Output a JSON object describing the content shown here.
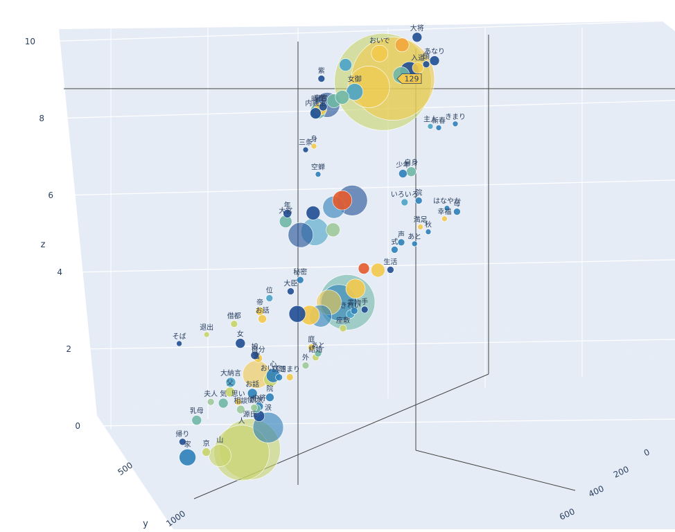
{
  "chart_data": {
    "type": "scatter",
    "subtype": "scatter3d-bubble",
    "grid": true,
    "axes": {
      "x": {
        "title": "x",
        "ticks": [
          "0",
          "200",
          "400",
          "600"
        ]
      },
      "y": {
        "title": "y",
        "ticks": [
          "500",
          "1000"
        ]
      },
      "z": {
        "title": "z",
        "ticks": [
          "0",
          "2",
          "4",
          "6",
          "8",
          "10"
        ],
        "range": [
          0,
          10
        ]
      }
    },
    "hover": {
      "value": "129"
    },
    "colors": [
      "#1f4e94",
      "#2c7fb8",
      "#4aa3c7",
      "#6fb7a6",
      "#9ec99a",
      "#c8d46a",
      "#f2c94c",
      "#f3a63b",
      "#e45b2c",
      "#c62d2d"
    ],
    "points": [
      {
        "label": "そば",
        "x": 1200,
        "y": 120,
        "z": 3.3,
        "s": 4,
        "c": 0
      },
      {
        "label": "退出",
        "x": 1100,
        "y": 140,
        "z": 3.35,
        "s": 4,
        "c": 5
      },
      {
        "label": "借都",
        "x": 1000,
        "y": 160,
        "z": 3.45,
        "s": 5,
        "c": 5
      },
      {
        "label": "帝",
        "x": 900,
        "y": 200,
        "z": 3.6,
        "s": 6,
        "c": 6
      },
      {
        "label": "お話",
        "x": 880,
        "y": 240,
        "z": 3.3,
        "s": 6,
        "c": 6
      },
      {
        "label": "大臣",
        "x": 800,
        "y": 180,
        "z": 4.0,
        "s": 5,
        "c": 0
      },
      {
        "label": "秘密",
        "x": 750,
        "y": 240,
        "z": 4.2,
        "s": 5,
        "c": 1
      },
      {
        "label": "位",
        "x": 850,
        "y": 260,
        "z": 3.85,
        "s": 5,
        "c": 2
      },
      {
        "label": "女",
        "x": 950,
        "y": 260,
        "z": 2.7,
        "s": 7,
        "c": 0
      },
      {
        "label": "満足",
        "x": 200,
        "y": 720,
        "z": 4.35,
        "s": 4,
        "c": 6
      },
      {
        "label": "幸福",
        "x": 100,
        "y": 780,
        "z": 4.35,
        "s": 4,
        "c": 6
      },
      {
        "label": "はなやか",
        "x": 80,
        "y": 820,
        "z": 4.6,
        "s": 4,
        "c": 1
      },
      {
        "label": "母",
        "x": 40,
        "y": 840,
        "z": 4.4,
        "s": 5,
        "c": 1
      },
      {
        "label": "秋",
        "x": 150,
        "y": 800,
        "z": 4.05,
        "s": 4,
        "c": 1
      },
      {
        "label": "あと",
        "x": 200,
        "y": 790,
        "z": 3.8,
        "s": 4,
        "c": 1
      },
      {
        "label": "声",
        "x": 260,
        "y": 740,
        "z": 4.0,
        "s": 5,
        "c": 1
      },
      {
        "label": "式",
        "x": 300,
        "y": 680,
        "z": 3.9,
        "s": 5,
        "c": 1
      },
      {
        "label": "生活",
        "x": 320,
        "y": 660,
        "z": 3.35,
        "s": 5,
        "c": 0
      },
      {
        "label": "手",
        "x": 400,
        "y": 690,
        "z": 2.3,
        "s": 5,
        "c": 0
      },
      {
        "label": "書物",
        "x": 450,
        "y": 640,
        "z": 2.4,
        "s": 5,
        "c": 1
      },
      {
        "label": "座敷",
        "x": 500,
        "y": 600,
        "z": 2.0,
        "s": 5,
        "c": 5
      },
      {
        "label": "きれい",
        "x": 480,
        "y": 580,
        "z": 2.4,
        "s": 6,
        "c": 2
      },
      {
        "label": "結婚",
        "x": 600,
        "y": 580,
        "z": 1.35,
        "s": 5,
        "c": 5
      },
      {
        "label": "あと",
        "x": 580,
        "y": 620,
        "z": 1.4,
        "s": 5,
        "c": 3
      },
      {
        "label": "庭",
        "x": 620,
        "y": 560,
        "z": 1.7,
        "s": 5,
        "c": 6
      },
      {
        "label": "外",
        "x": 640,
        "y": 560,
        "z": 1.2,
        "s": 5,
        "c": 4
      },
      {
        "label": "きまり",
        "x": 680,
        "y": 610,
        "z": 0.9,
        "s": 5,
        "c": 6
      },
      {
        "label": "訪問",
        "x": 700,
        "y": 670,
        "z": 0.9,
        "s": 5,
        "c": 1
      },
      {
        "label": "院",
        "x": 740,
        "y": 640,
        "z": 0.4,
        "s": 6,
        "c": 1
      },
      {
        "label": "中将",
        "x": 800,
        "y": 560,
        "z": 0.3,
        "s": 6,
        "c": 1
      },
      {
        "label": "病気",
        "x": 820,
        "y": 520,
        "z": 0.3,
        "s": 6,
        "c": 3
      },
      {
        "label": "使い",
        "x": 840,
        "y": 480,
        "z": 0.4,
        "s": 5,
        "c": 4
      },
      {
        "label": "相談",
        "x": 900,
        "y": 430,
        "z": 0.5,
        "s": 6,
        "c": 4
      },
      {
        "label": "お話",
        "x": 860,
        "y": 430,
        "z": 0.9,
        "s": 7,
        "c": 1
      },
      {
        "label": "気",
        "x": 980,
        "y": 360,
        "z": 0.9,
        "s": 7,
        "c": 3
      },
      {
        "label": "思い",
        "x": 920,
        "y": 390,
        "z": 0.8,
        "s": 5,
        "c": 6
      },
      {
        "label": "父",
        "x": 960,
        "y": 350,
        "z": 1.2,
        "s": 7,
        "c": 5
      },
      {
        "label": "夫人",
        "x": 1040,
        "y": 300,
        "z": 1.1,
        "s": 5,
        "c": 4
      },
      {
        "label": "大納言",
        "x": 960,
        "y": 340,
        "z": 1.5,
        "s": 7,
        "c": 2
      },
      {
        "label": "宮",
        "x": 860,
        "y": 380,
        "z": 1.5,
        "s": 20,
        "c": 6
      },
      {
        "label": "おいで",
        "x": 800,
        "y": 420,
        "z": 1.2,
        "s": 10,
        "c": 5
      },
      {
        "label": "乳母",
        "x": 1100,
        "y": 260,
        "z": 0.7,
        "s": 7,
        "c": 3
      },
      {
        "label": "帰り",
        "x": 1160,
        "y": 220,
        "z": 0.2,
        "s": 5,
        "c": 0
      },
      {
        "label": "自分",
        "x": 860,
        "y": 360,
        "z": 2.0,
        "s": 6,
        "c": 6
      },
      {
        "label": "娘",
        "x": 880,
        "y": 330,
        "z": 2.15,
        "s": 6,
        "c": 0
      },
      {
        "label": "心",
        "x": 780,
        "y": 460,
        "z": 1.25,
        "s": 10,
        "c": 1
      },
      {
        "label": "山",
        "x": 980,
        "y": 400,
        "z": -0.7,
        "s": 16,
        "c": 5
      },
      {
        "label": "人",
        "x": 900,
        "y": 420,
        "z": -0.8,
        "s": 40,
        "c": 5
      },
      {
        "label": "京",
        "x": 1050,
        "y": 320,
        "z": -0.4,
        "s": 6,
        "c": 5
      },
      {
        "label": "家",
        "x": 1120,
        "y": 300,
        "z": -0.4,
        "s": 12,
        "c": 1
      },
      {
        "label": "源氏",
        "x": 860,
        "y": 460,
        "z": -0.8,
        "s": 44,
        "c": 5
      },
      {
        "label": "涙",
        "x": 780,
        "y": 520,
        "z": -0.35,
        "s": 22,
        "c": 1
      },
      {
        "label": "",
        "x": 820,
        "y": 490,
        "z": 0.1,
        "s": 8,
        "c": 0
      },
      {
        "label": "内親王",
        "x": 720,
        "y": 160,
        "z": 9.2,
        "s": 8,
        "c": 0
      },
      {
        "label": "時代",
        "x": 700,
        "y": 200,
        "z": 9.2,
        "s": 11,
        "c": 3
      },
      {
        "label": "東宮",
        "x": 680,
        "y": 240,
        "z": 9.2,
        "s": 9,
        "c": 6
      },
      {
        "label": "他",
        "x": 660,
        "y": 280,
        "z": 9.2,
        "s": 6,
        "c": 0
      },
      {
        "label": "",
        "x": 640,
        "y": 300,
        "z": 9.2,
        "s": 18,
        "c": 0
      },
      {
        "label": "",
        "x": 600,
        "y": 360,
        "z": 9.2,
        "s": 10,
        "c": 3
      },
      {
        "label": "",
        "x": 560,
        "y": 400,
        "z": 9.2,
        "s": 10,
        "c": 3
      },
      {
        "label": "女御",
        "x": 500,
        "y": 460,
        "z": 9.2,
        "s": 12,
        "c": 2
      },
      {
        "label": "",
        "x": 440,
        "y": 500,
        "z": 9.2,
        "s": 30,
        "c": 6
      },
      {
        "label": "",
        "x": 380,
        "y": 540,
        "z": 9.2,
        "s": 70,
        "c": 5
      },
      {
        "label": "",
        "x": 340,
        "y": 560,
        "z": 9.2,
        "s": 60,
        "c": 6
      },
      {
        "label": "",
        "x": 300,
        "y": 600,
        "z": 9.2,
        "s": 12,
        "c": 3
      },
      {
        "label": "",
        "x": 260,
        "y": 640,
        "z": 9.2,
        "s": 14,
        "c": 0
      },
      {
        "label": "入道",
        "x": 220,
        "y": 680,
        "z": 9.2,
        "s": 8,
        "c": 6
      },
      {
        "label": "頭",
        "x": 180,
        "y": 720,
        "z": 9.2,
        "s": 5,
        "c": 0
      },
      {
        "label": "あなり",
        "x": 140,
        "y": 760,
        "z": 9.2,
        "s": 7,
        "c": 0
      },
      {
        "label": "紫",
        "x": 700,
        "y": 160,
        "z": 10.2,
        "s": 5,
        "c": 0
      },
      {
        "label": "大将",
        "x": 240,
        "y": 620,
        "z": 10.2,
        "s": 7,
        "c": 0
      },
      {
        "label": "おいで",
        "x": 420,
        "y": 440,
        "z": 10.2,
        "s": 12,
        "c": 6
      },
      {
        "label": "",
        "x": 320,
        "y": 520,
        "z": 10.2,
        "s": 10,
        "c": 7
      },
      {
        "label": "",
        "x": 560,
        "y": 360,
        "z": 10.2,
        "s": 9,
        "c": 2
      },
      {
        "label": "三条",
        "x": 760,
        "y": 140,
        "z": 8.2,
        "s": 4,
        "c": 0
      },
      {
        "label": "身",
        "x": 720,
        "y": 180,
        "z": 8.2,
        "s": 4,
        "c": 6
      },
      {
        "label": "空蝉",
        "x": 700,
        "y": 200,
        "z": 7.3,
        "s": 4,
        "c": 1
      },
      {
        "label": "新春",
        "x": 160,
        "y": 640,
        "z": 7.3,
        "s": 4,
        "c": 1
      },
      {
        "label": "きまり",
        "x": 80,
        "y": 720,
        "z": 7.2,
        "s": 4,
        "c": 1
      },
      {
        "label": "主人",
        "x": 200,
        "y": 600,
        "z": 7.45,
        "s": 4,
        "c": 2
      },
      {
        "label": "年",
        "x": 820,
        "y": 150,
        "z": 6.4,
        "s": 6,
        "c": 0
      },
      {
        "label": "大宮",
        "x": 820,
        "y": 170,
        "z": 6.15,
        "s": 9,
        "c": 3
      },
      {
        "label": "",
        "x": 700,
        "y": 260,
        "z": 6.1,
        "s": 10,
        "c": 0
      },
      {
        "label": "",
        "x": 600,
        "y": 360,
        "z": 6.0,
        "s": 16,
        "c": 1
      },
      {
        "label": "",
        "x": 520,
        "y": 420,
        "z": 6.0,
        "s": 22,
        "c": 0
      },
      {
        "label": "",
        "x": 560,
        "y": 400,
        "z": 6.1,
        "s": 14,
        "c": 8
      },
      {
        "label": "自身",
        "x": 260,
        "y": 620,
        "z": 6.2,
        "s": 7,
        "c": 3
      },
      {
        "label": "少年",
        "x": 300,
        "y": 580,
        "z": 6.25,
        "s": 6,
        "c": 1
      },
      {
        "label": "院",
        "x": 240,
        "y": 600,
        "z": 5.3,
        "s": 5,
        "c": 1
      },
      {
        "label": "いろいろ",
        "x": 300,
        "y": 560,
        "z": 5.4,
        "s": 5,
        "c": 2
      },
      {
        "label": "",
        "x": 760,
        "y": 200,
        "z": 5.6,
        "s": 18,
        "c": 0
      },
      {
        "label": "",
        "x": 700,
        "y": 240,
        "z": 5.55,
        "s": 20,
        "c": 2
      },
      {
        "label": "",
        "x": 620,
        "y": 300,
        "z": 5.4,
        "s": 10,
        "c": 4
      },
      {
        "label": "",
        "x": 600,
        "y": 420,
        "z": 3.1,
        "s": 18,
        "c": 6
      },
      {
        "label": "",
        "x": 560,
        "y": 440,
        "z": 3.0,
        "s": 26,
        "c": 1
      },
      {
        "label": "",
        "x": 520,
        "y": 480,
        "z": 2.9,
        "s": 40,
        "c": 3
      },
      {
        "label": "",
        "x": 480,
        "y": 520,
        "z": 3.2,
        "s": 14,
        "c": 6
      },
      {
        "label": "",
        "x": 640,
        "y": 380,
        "z": 2.8,
        "s": 16,
        "c": 1
      },
      {
        "label": "",
        "x": 700,
        "y": 300,
        "z": 3.0,
        "s": 14,
        "c": 6
      },
      {
        "label": "",
        "x": 760,
        "y": 240,
        "z": 3.2,
        "s": 12,
        "c": 0
      },
      {
        "label": "",
        "x": 440,
        "y": 560,
        "z": 3.7,
        "s": 8,
        "c": 8
      },
      {
        "label": "",
        "x": 380,
        "y": 600,
        "z": 3.5,
        "s": 10,
        "c": 6
      }
    ],
    "hover_point": {
      "x": 340,
      "y": 560,
      "z": 9.2
    }
  }
}
